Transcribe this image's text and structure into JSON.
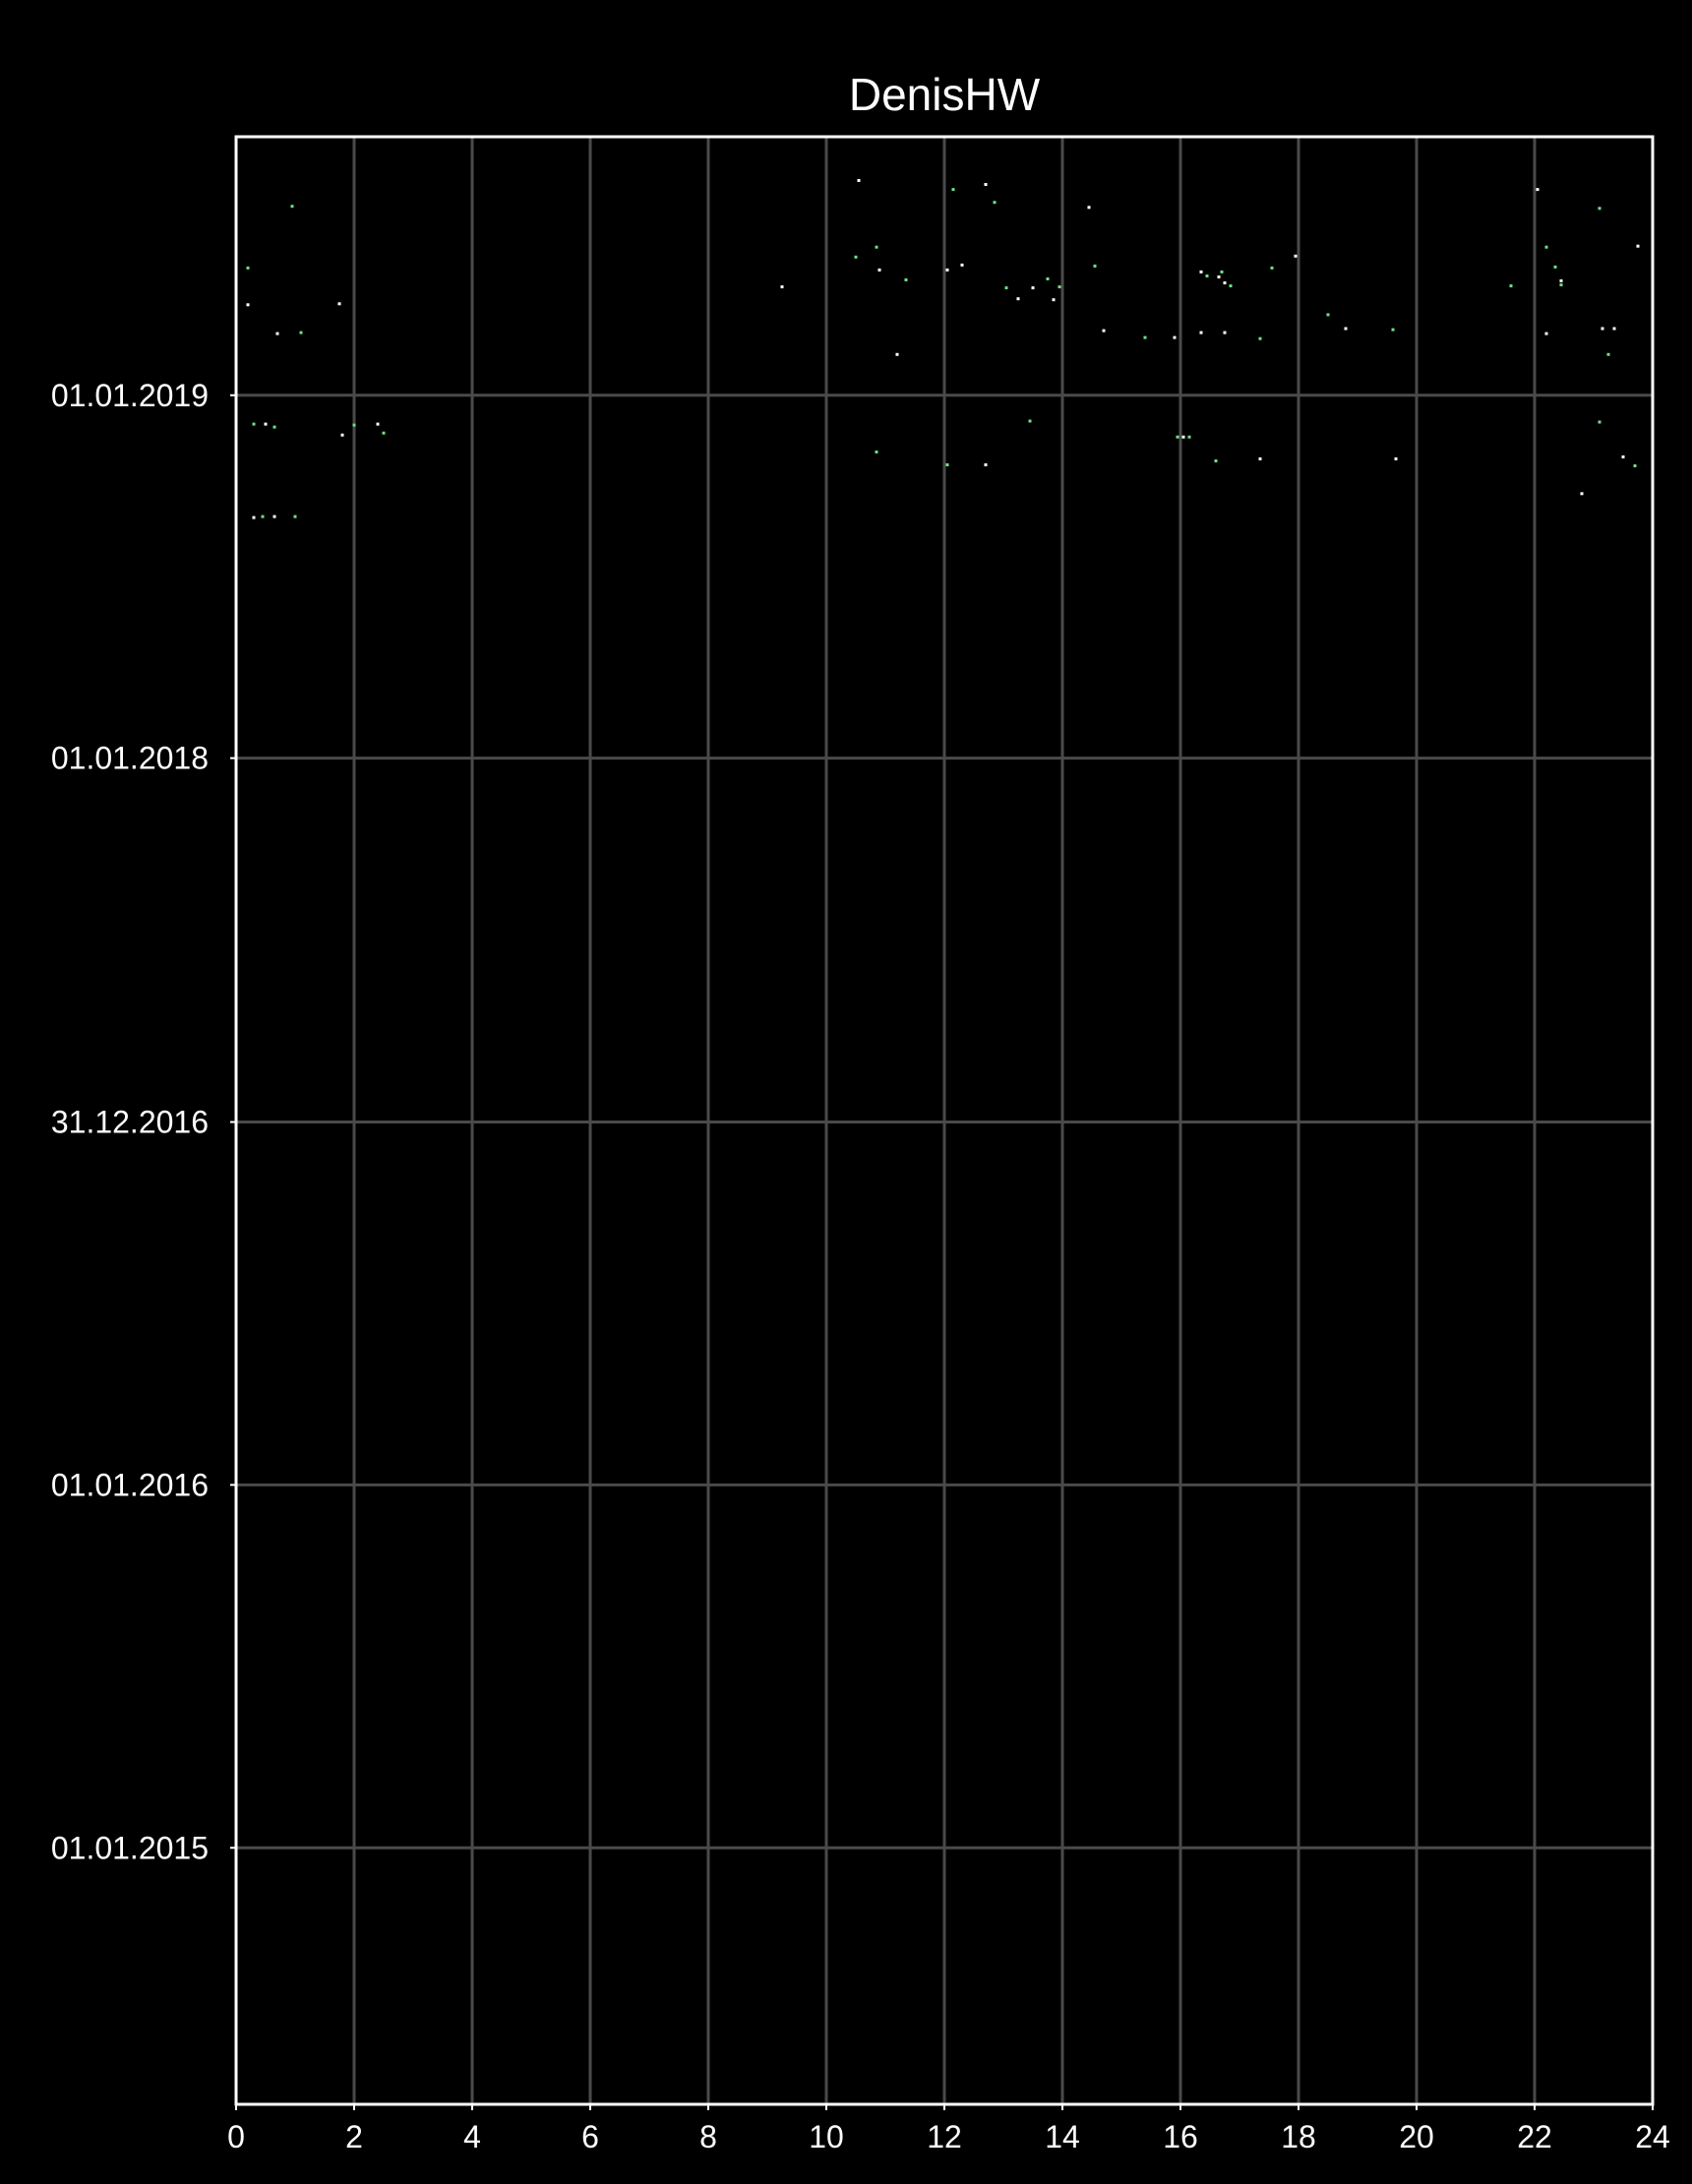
{
  "chart_data": {
    "type": "scatter",
    "title": "DenisHW",
    "xlabel": "",
    "ylabel": "",
    "grid": true,
    "background_color": "#000000",
    "point_colors": [
      "#6fe08a",
      "#ffffff"
    ],
    "xlim": [
      0,
      24
    ],
    "x_ticks": [
      0,
      2,
      4,
      6,
      8,
      10,
      12,
      14,
      16,
      18,
      20,
      22,
      24
    ],
    "ylim": [
      "2014-04-18",
      "2019-09-18"
    ],
    "y_ticks": [
      {
        "date": "2015-01-01",
        "label": "01.01.2015"
      },
      {
        "date": "2016-01-01",
        "label": "01.01.2016"
      },
      {
        "date": "2016-12-31",
        "label": "31.12.2016"
      },
      {
        "date": "2018-01-01",
        "label": "01.01.2018"
      },
      {
        "date": "2019-01-01",
        "label": "01.01.2019"
      }
    ],
    "series": [
      {
        "points": [
          [
            0.2,
            "2019-05-09"
          ],
          [
            0.2,
            "2019-04-02"
          ],
          [
            0.95,
            "2019-07-10"
          ],
          [
            0.7,
            "2019-03-04"
          ],
          [
            1.1,
            "2019-03-05"
          ],
          [
            1.75,
            "2019-04-03"
          ],
          [
            0.3,
            "2018-12-03"
          ],
          [
            0.5,
            "2018-12-03"
          ],
          [
            0.65,
            "2018-11-30"
          ],
          [
            1.8,
            "2018-11-22"
          ],
          [
            2.0,
            "2018-12-02"
          ],
          [
            2.4,
            "2018-12-03"
          ],
          [
            2.5,
            "2018-11-24"
          ],
          [
            0.3,
            "2018-08-31"
          ],
          [
            0.45,
            "2018-09-01"
          ],
          [
            0.65,
            "2018-09-01"
          ],
          [
            1.0,
            "2018-09-01"
          ],
          [
            9.25,
            "2019-04-20"
          ],
          [
            10.5,
            "2019-05-20"
          ],
          [
            10.55,
            "2019-08-05"
          ],
          [
            10.85,
            "2019-05-30"
          ],
          [
            10.9,
            "2019-05-07"
          ],
          [
            10.85,
            "2018-11-05"
          ],
          [
            11.2,
            "2019-02-11"
          ],
          [
            11.35,
            "2019-04-27"
          ],
          [
            12.05,
            "2019-05-07"
          ],
          [
            12.15,
            "2019-07-27"
          ],
          [
            12.3,
            "2019-05-12"
          ],
          [
            12.05,
            "2018-10-23"
          ],
          [
            12.7,
            "2019-08-01"
          ],
          [
            12.85,
            "2019-07-14"
          ],
          [
            12.7,
            "2018-10-23"
          ],
          [
            13.05,
            "2019-04-19"
          ],
          [
            13.25,
            "2019-04-08"
          ],
          [
            13.45,
            "2018-12-06"
          ],
          [
            13.5,
            "2019-04-19"
          ],
          [
            13.75,
            "2019-04-28"
          ],
          [
            13.85,
            "2019-04-07"
          ],
          [
            13.95,
            "2019-04-20"
          ],
          [
            14.45,
            "2019-07-09"
          ],
          [
            14.55,
            "2019-05-11"
          ],
          [
            14.7,
            "2019-03-07"
          ],
          [
            15.4,
            "2019-02-28"
          ],
          [
            15.9,
            "2019-02-28"
          ],
          [
            15.95,
            "2018-11-20"
          ],
          [
            16.05,
            "2018-11-20"
          ],
          [
            16.15,
            "2018-11-20"
          ],
          [
            16.35,
            "2019-05-05"
          ],
          [
            16.45,
            "2019-05-01"
          ],
          [
            16.35,
            "2019-03-05"
          ],
          [
            16.6,
            "2018-10-27"
          ],
          [
            16.65,
            "2019-04-30"
          ],
          [
            16.7,
            "2019-05-05"
          ],
          [
            16.75,
            "2019-04-24"
          ],
          [
            16.85,
            "2019-04-21"
          ],
          [
            16.75,
            "2019-03-05"
          ],
          [
            17.35,
            "2019-02-27"
          ],
          [
            17.35,
            "2018-10-29"
          ],
          [
            17.55,
            "2019-05-09"
          ],
          [
            17.95,
            "2019-05-21"
          ],
          [
            18.5,
            "2019-03-23"
          ],
          [
            18.8,
            "2019-03-09"
          ],
          [
            19.6,
            "2019-03-08"
          ],
          [
            19.65,
            "2018-10-29"
          ],
          [
            21.6,
            "2019-04-21"
          ],
          [
            22.05,
            "2019-07-27"
          ],
          [
            22.2,
            "2019-05-30"
          ],
          [
            22.2,
            "2019-03-04"
          ],
          [
            22.35,
            "2019-05-10"
          ],
          [
            22.45,
            "2019-04-26"
          ],
          [
            22.45,
            "2019-04-22"
          ],
          [
            22.8,
            "2018-09-24"
          ],
          [
            23.1,
            "2019-07-08"
          ],
          [
            23.15,
            "2019-03-09"
          ],
          [
            23.25,
            "2019-02-11"
          ],
          [
            23.35,
            "2019-03-09"
          ],
          [
            23.1,
            "2018-12-05"
          ],
          [
            23.5,
            "2018-10-31"
          ],
          [
            23.7,
            "2018-10-22"
          ],
          [
            23.75,
            "2019-05-31"
          ]
        ]
      }
    ]
  }
}
